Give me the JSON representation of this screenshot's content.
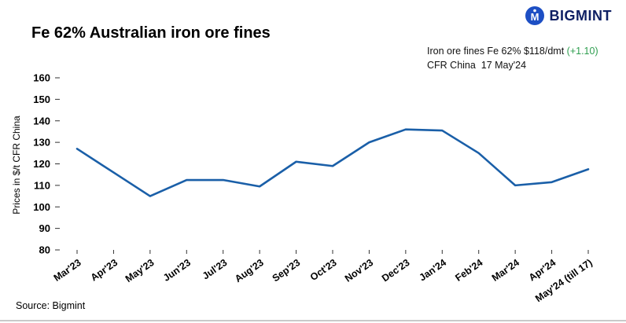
{
  "header": {
    "title": "Fe 62% Australian iron ore fines",
    "logo_text": "BIGMINT"
  },
  "annotation": {
    "line1": "Iron ore fines Fe 62% $118/dmt",
    "change": "(+1.10)",
    "line2": "CFR China  17 May'24"
  },
  "chart_data": {
    "type": "line",
    "title": "Fe 62% Australian iron ore fines",
    "categories": [
      "Mar'23",
      "Apr'23",
      "May'23",
      "Jun'23",
      "Jul'23",
      "Aug'23",
      "Sep'23",
      "Oct'23",
      "Nov'23",
      "Dec'23",
      "Jan'24",
      "Feb'24",
      "Mar'24",
      "Apr'24",
      "May'24 (till 17)"
    ],
    "values": [
      127,
      116,
      105,
      112.5,
      112.5,
      109.5,
      121,
      119,
      130,
      136,
      135.5,
      125,
      110,
      111.5,
      117.5
    ],
    "latest_value_label": "$118/dmt",
    "latest_change": "+1.10",
    "xlabel": "",
    "ylabel": "Prices in $/t CFR China",
    "ylim": [
      80,
      160
    ],
    "yticks": [
      160,
      150,
      140,
      130,
      120,
      110,
      100,
      90,
      80
    ],
    "grid": false,
    "legend": "none"
  },
  "source": "Source: Bigmint",
  "colors": {
    "line": "#1a5fa8",
    "positive_change": "#2e9e4f",
    "logo_blue": "#1d4fc4",
    "logo_text": "#0e1f63"
  }
}
